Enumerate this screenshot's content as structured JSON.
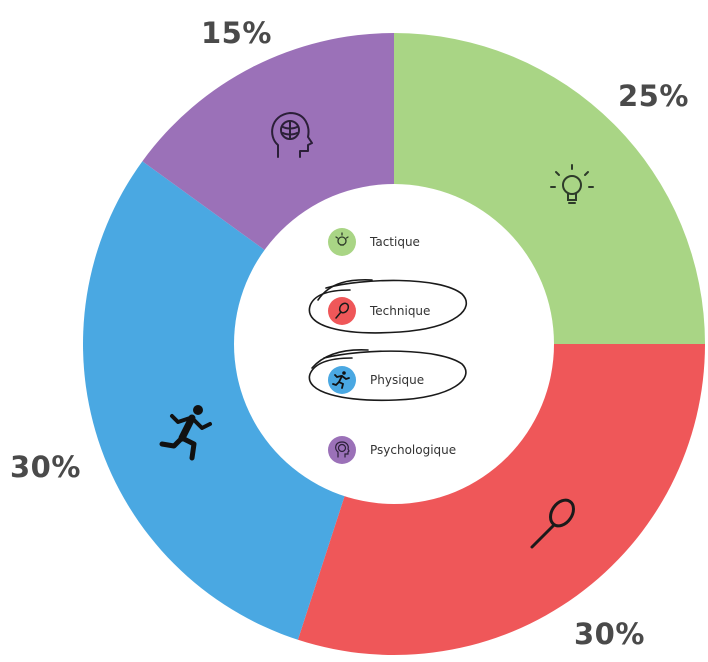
{
  "chart_data": {
    "type": "pie",
    "categories": [
      "Tactique",
      "Technique",
      "Physique",
      "Psychologique"
    ],
    "values": [
      25,
      30,
      30,
      15
    ],
    "value_labels": [
      "25%",
      "30%",
      "30%",
      "15%"
    ],
    "colors": [
      "#a9d585",
      "#ef5759",
      "#4aa8e2",
      "#9b71b8"
    ],
    "icons": [
      "lightbulb-icon",
      "tennis-racket-icon",
      "running-person-icon",
      "brain-head-icon"
    ],
    "legend_placement": "center",
    "donut": true
  },
  "legend": {
    "items": [
      {
        "label": "Tactique",
        "color": "#a9d585",
        "icon": "lightbulb-icon",
        "circled": false
      },
      {
        "label": "Technique",
        "color": "#ef5759",
        "icon": "tennis-racket-icon",
        "circled": true
      },
      {
        "label": "Physique",
        "color": "#4aa8e2",
        "icon": "running-person-icon",
        "circled": true
      },
      {
        "label": "Psychologique",
        "color": "#9b71b8",
        "icon": "brain-head-icon",
        "circled": false
      }
    ]
  }
}
